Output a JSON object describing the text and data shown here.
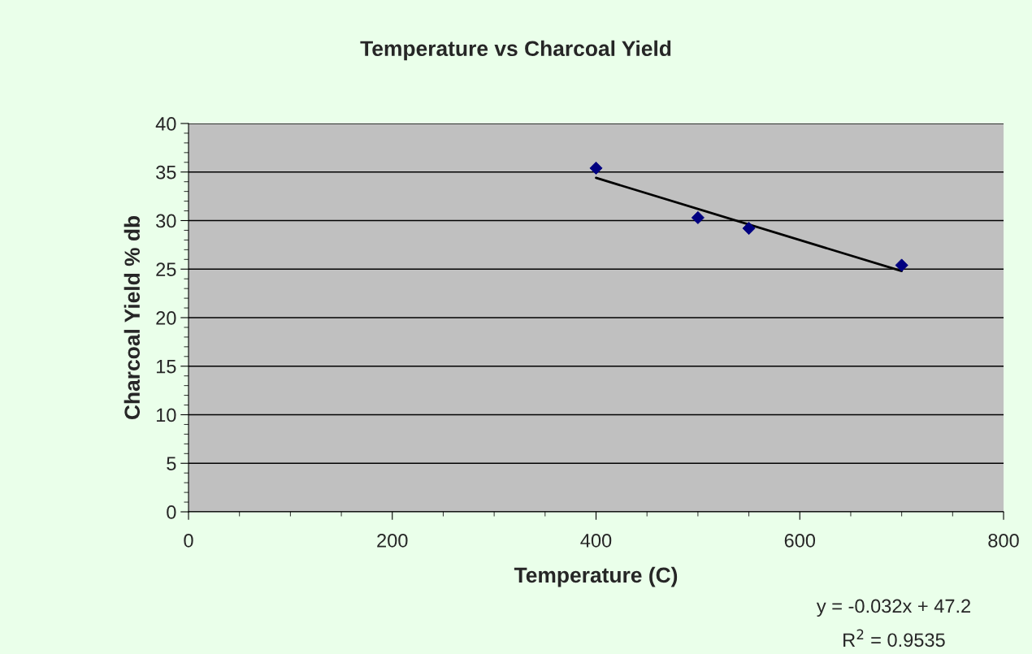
{
  "chart_data": {
    "type": "scatter",
    "title": "Temperature vs Charcoal Yield",
    "xlabel": "Temperature (C)",
    "ylabel": "Charcoal Yield % db",
    "xlim": [
      0,
      800
    ],
    "xticks": [
      0,
      200,
      400,
      600,
      800
    ],
    "ylim": [
      0,
      40
    ],
    "yticks": [
      0,
      5,
      10,
      15,
      20,
      25,
      30,
      35,
      40
    ],
    "grid": "y",
    "legend": false,
    "series": [
      {
        "color": "#000080",
        "marker": "diamond",
        "x": [
          400,
          500,
          550,
          700
        ],
        "values": [
          35.4,
          30.3,
          29.2,
          25.4
        ]
      },
      {
        "type": "line",
        "color": "#000000",
        "line_style": "solid",
        "x": [
          400,
          700
        ],
        "values": [
          34.4,
          24.8
        ]
      }
    ],
    "annotations": [
      "y = -0.032x + 47.2",
      "R$^{2}$ = 0.9535"
    ]
  }
}
